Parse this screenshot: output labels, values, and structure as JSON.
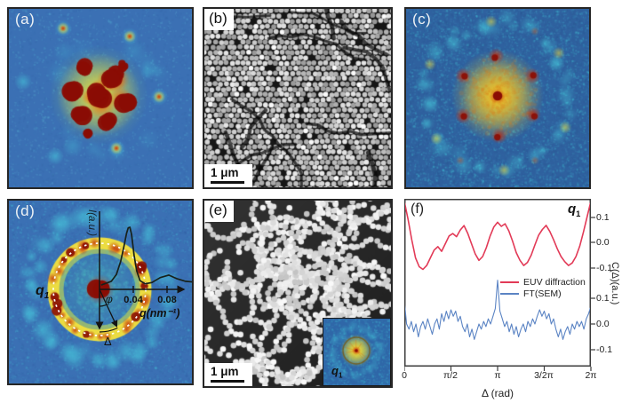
{
  "panels": {
    "a": {
      "label": "(a)",
      "kind": "EUV diffraction pattern heatmap"
    },
    "b": {
      "label": "(b)",
      "kind": "SEM image, close-packed nanospheres",
      "scale_bar": "1 μm"
    },
    "c": {
      "label": "(c)",
      "kind": "diffraction pattern heatmap"
    },
    "d": {
      "label": "(d)",
      "kind": "diffraction pattern with radial intensity profile",
      "ring_label": {
        "base": "q",
        "sub": "1"
      },
      "angle_label": "φ",
      "delta_label": "Δ"
    },
    "e": {
      "label": "(e)",
      "kind": "SEM image, sparse nanosphere clusters",
      "scale_bar": "1 μm",
      "inset_label": {
        "base": "q",
        "sub": "1"
      }
    },
    "f": {
      "label": "(f)",
      "corner_label": {
        "base": "q",
        "sub": "1"
      }
    }
  },
  "chart_data": [
    {
      "type": "line",
      "panel": "f",
      "title": "",
      "xlabel": "Δ (rad)",
      "ylabel": "C(Δ)(a.u.)",
      "xticks": [
        "0",
        "π/2",
        "π",
        "3/2π",
        "2π"
      ],
      "xlim_rad": [
        0,
        6.2832
      ],
      "yticks": [
        "0.1",
        "0.0",
        "-0.1"
      ],
      "ytick_values": [
        0.1,
        0.0,
        -0.1
      ],
      "legend_position": "center right",
      "grid": false,
      "series": [
        {
          "name": "EUV diffraction",
          "color": "#e23a57",
          "axis": "top",
          "x_start_pi": 0,
          "x_step_pi": 0.04,
          "values": [
            0.16,
            0.09,
            0.01,
            -0.06,
            -0.095,
            -0.105,
            -0.09,
            -0.06,
            -0.03,
            -0.017,
            -0.035,
            -0.005,
            0.025,
            0.034,
            0.022,
            0.048,
            0.065,
            0.035,
            -0.005,
            -0.045,
            -0.07,
            -0.055,
            -0.02,
            0.025,
            0.06,
            0.078,
            0.062,
            0.072,
            0.045,
            0.005,
            -0.04,
            -0.07,
            -0.09,
            -0.078,
            -0.05,
            -0.01,
            0.028,
            0.05,
            0.066,
            0.042,
            0.01,
            -0.025,
            -0.055,
            -0.075,
            -0.09,
            -0.08,
            -0.055,
            -0.015,
            0.04,
            0.1,
            0.16
          ]
        },
        {
          "name": "FT(SEM)",
          "color": "#5b84c4",
          "axis": "bottom",
          "x_start_pi": 0,
          "x_step_pi": 0.025,
          "values": [
            0.09,
            0.0,
            -0.02,
            0.01,
            -0.03,
            0.0,
            -0.05,
            -0.01,
            0.01,
            -0.02,
            0.02,
            -0.01,
            -0.04,
            0.0,
            0.02,
            -0.02,
            0.04,
            0.01,
            0.05,
            0.02,
            0.055,
            0.03,
            0.05,
            0.01,
            0.03,
            -0.01,
            -0.03,
            0.0,
            -0.05,
            -0.02,
            -0.06,
            -0.03,
            0.0,
            -0.02,
            0.01,
            -0.01,
            0.02,
            0.0,
            0.03,
            0.06,
            0.17,
            0.05,
            0.02,
            -0.01,
            0.01,
            -0.03,
            0.0,
            -0.04,
            -0.01,
            -0.05,
            -0.02,
            0.0,
            -0.03,
            0.01,
            -0.01,
            0.02,
            0.0,
            0.03,
            0.055,
            0.03,
            0.05,
            0.02,
            0.04,
            0.0,
            0.02,
            -0.02,
            -0.05,
            -0.02,
            -0.06,
            -0.03,
            -0.01,
            -0.04,
            0.0,
            -0.02,
            0.01,
            -0.01,
            0.01,
            -0.02,
            0.02,
            0.04,
            0.07
          ]
        }
      ]
    },
    {
      "type": "line",
      "panel": "d-inset",
      "xlabel": "q(nm⁻¹)",
      "ylabel": "I(a.u.)",
      "xticks": [
        "0.04",
        "0.08"
      ],
      "xtick_values": [
        0.04,
        0.08
      ],
      "series": [
        {
          "name": "radial intensity I(q)",
          "color": "#17211a",
          "q": [
            0.002,
            0.008,
            0.014,
            0.02,
            0.025,
            0.029,
            0.032,
            0.034,
            0.036,
            0.038,
            0.041,
            0.044,
            0.048,
            0.054,
            0.062,
            0.072,
            0.082,
            0.092,
            0.102,
            0.11
          ],
          "intensity": [
            0.07,
            0.1,
            0.13,
            0.24,
            0.45,
            0.7,
            0.9,
            0.99,
            1.0,
            0.88,
            0.55,
            0.3,
            0.14,
            0.09,
            0.11,
            0.19,
            0.23,
            0.17,
            0.13,
            0.12
          ]
        }
      ]
    }
  ],
  "palette": {
    "accent_red": "#e23a57",
    "accent_blue": "#5b84c4",
    "jet_bg": "#3b70b4",
    "jet_bg_deep": "#2f619f",
    "cyan": "#49d0e0",
    "green": "#9fd85a",
    "yellow": "#f4e23c",
    "orange": "#e8630f",
    "red": "#c32808",
    "dark_red": "#8a0d04",
    "sem_bg": "#161616",
    "sem_dot": "#d2d2d2",
    "panel_border": "#262626",
    "axis_ink": "#1a1a1a"
  }
}
